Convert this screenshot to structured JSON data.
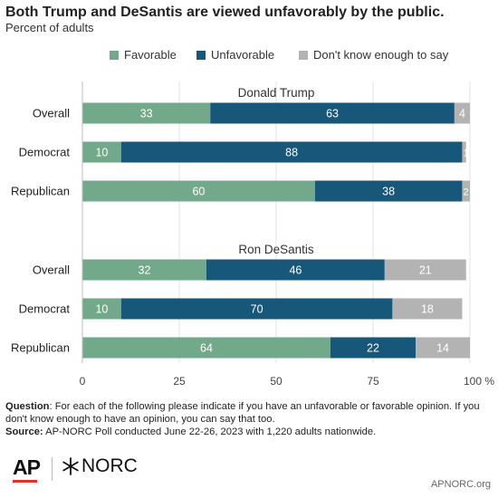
{
  "title": "Both Trump and DeSantis are viewed unfavorably by the public.",
  "subtitle": "Percent of adults",
  "legend": [
    {
      "label": "Favorable",
      "color": "#72a98a"
    },
    {
      "label": "Unfavorable",
      "color": "#17577a"
    },
    {
      "label": "Don't know enough to say",
      "color": "#b3b3b3"
    }
  ],
  "chart_data": {
    "type": "bar",
    "orientation": "horizontal",
    "stacked": true,
    "series_names": [
      "Favorable",
      "Unfavorable",
      "Don't know enough to say"
    ],
    "colors": [
      "#72a98a",
      "#17577a",
      "#b3b3b3"
    ],
    "groups": [
      {
        "title": "Donald Trump",
        "rows": [
          {
            "label": "Overall",
            "values": [
              33,
              63,
              4
            ]
          },
          {
            "label": "Democrat",
            "values": [
              10,
              88,
              1
            ]
          },
          {
            "label": "Republican",
            "values": [
              60,
              38,
              2
            ]
          }
        ]
      },
      {
        "title": "Ron DeSantis",
        "rows": [
          {
            "label": "Overall",
            "values": [
              32,
              46,
              21
            ]
          },
          {
            "label": "Democrat",
            "values": [
              10,
              70,
              18
            ]
          },
          {
            "label": "Republican",
            "values": [
              64,
              22,
              14
            ]
          }
        ]
      }
    ],
    "xlim": [
      0,
      100
    ],
    "xticks": [
      "0",
      "25",
      "50",
      "75",
      "100 %"
    ],
    "grid": true
  },
  "footnote": {
    "question_label": "Question",
    "question_text": ": For each of the following please indicate if you have an unfavorable or favorable opinion. If you don't know enough to have an opinion, you can say that too.",
    "source_label": "Source:",
    "source_text": " AP-NORC Poll conducted June 22-26, 2023 with 1,220 adults nationwide."
  },
  "branding": {
    "ap_logo": "AP",
    "norc_logo": "NORC",
    "url": "APNORC.org"
  }
}
